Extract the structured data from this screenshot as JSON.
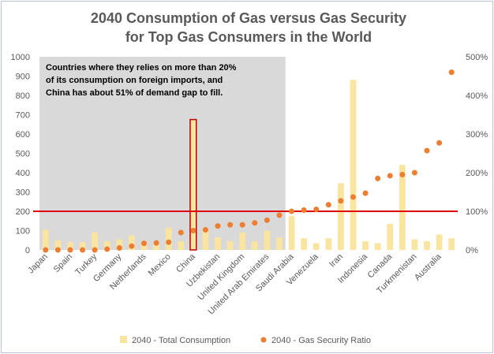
{
  "chart_data": {
    "type": "bar",
    "title": "2040 Consumption of Gas versus Gas Security",
    "subtitle": "for Top Gas Consumers in the World",
    "categories": [
      "Japan",
      "",
      "Spain",
      "",
      "Turkey",
      "",
      "Germany",
      "",
      "Netherlands",
      "",
      "Mexico",
      "",
      "China",
      "",
      "Uzbekistan",
      "",
      "United Kingdom",
      "",
      "United Arab Emirates",
      "",
      "Saudi Arabia",
      "",
      "Venezuela",
      "",
      "Iran",
      "",
      "Indonesia",
      "",
      "Canada",
      "",
      "Turkmenistan",
      "",
      "Australia",
      ""
    ],
    "series": [
      {
        "name": "2040 - Total Consumption",
        "axis": "left",
        "type": "bar",
        "color": "#f9e4a0",
        "values": [
          105,
          50,
          40,
          40,
          90,
          45,
          55,
          75,
          30,
          30,
          115,
          45,
          675,
          100,
          65,
          45,
          90,
          45,
          100,
          65,
          175,
          60,
          35,
          60,
          345,
          880,
          45,
          35,
          135,
          440,
          55,
          45,
          80,
          60
        ]
      },
      {
        "name": "2040 - Gas Security Ratio",
        "axis": "right",
        "type": "scatter",
        "color": "#ed7d31",
        "values": [
          0,
          0,
          0,
          0,
          0,
          2,
          5,
          10,
          17,
          18,
          20,
          45,
          50,
          52,
          62,
          65,
          65,
          70,
          77,
          90,
          100,
          103,
          105,
          117,
          127,
          137,
          147,
          185,
          192,
          195,
          200,
          257,
          277,
          460
        ]
      }
    ],
    "yaxis_left": {
      "min": 0,
      "max": 1000,
      "step": 100
    },
    "yaxis_right": {
      "min": 0,
      "max": 500,
      "step": 100,
      "format": "percent"
    },
    "yticks_left": [
      "0",
      "100",
      "200",
      "300",
      "400",
      "500",
      "600",
      "700",
      "800",
      "900",
      "1000"
    ],
    "yticks_right": [
      "0%",
      "100%",
      "200%",
      "300%",
      "400%",
      "500%"
    ],
    "reference_line": {
      "axis": "right",
      "value": 100,
      "color": "#e00000"
    },
    "shaded_region": {
      "from_index": 0,
      "to_index": 19,
      "color": "#d9d9d9"
    },
    "highlight_index": 12,
    "annotation": [
      "Countries where they relies on more than 20%",
      "of its consumption  on foreign imports, and",
      "China has about 51% of demand gap to fill."
    ],
    "legend_position": "bottom",
    "grid": false
  }
}
